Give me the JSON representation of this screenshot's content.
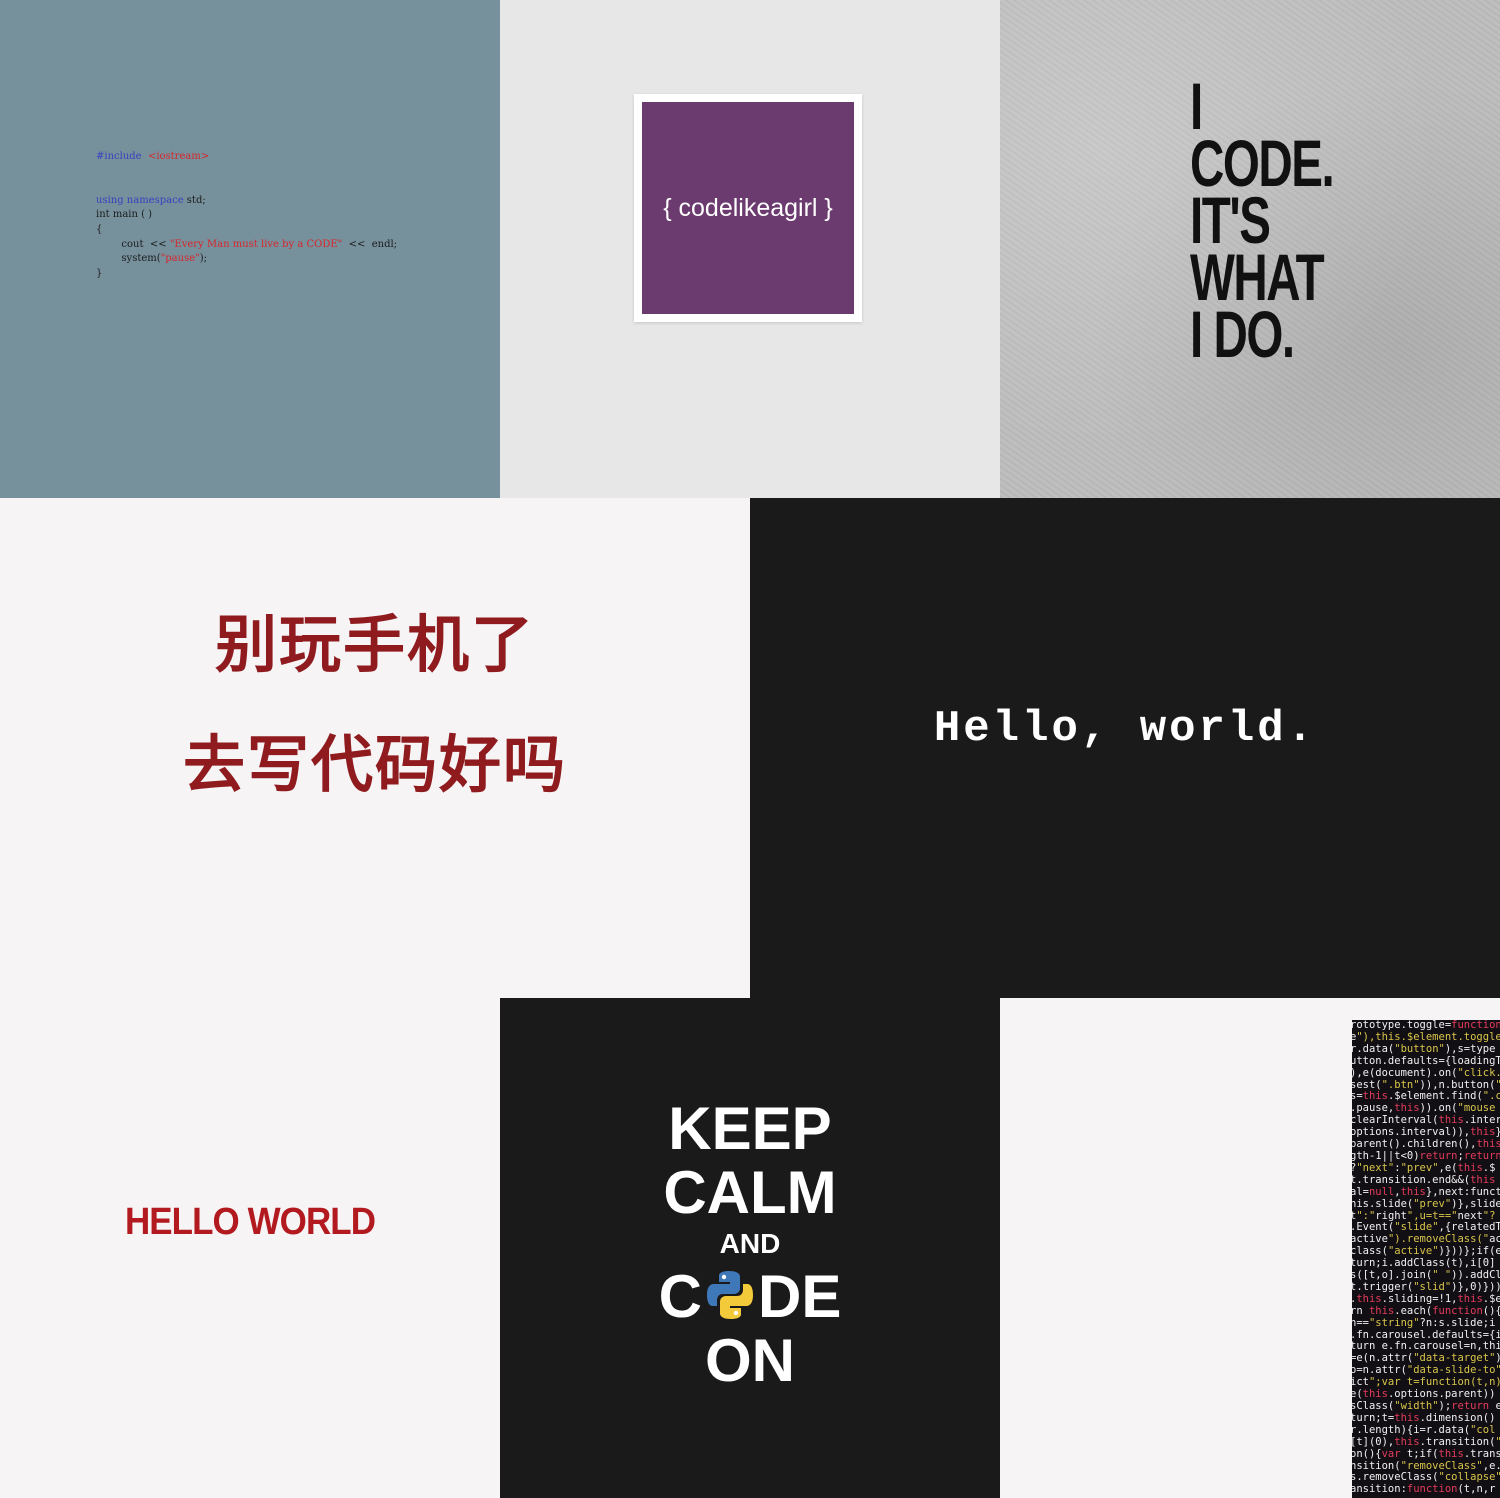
{
  "tile1": {
    "line1_kw": "#include",
    "line1_str": "<iostream>",
    "line2_kw": "using namespace",
    "line2_rest": " std;",
    "line3": "int main ( )",
    "line4": "{",
    "line5_a": "        cout  << ",
    "line5_str": "\"Every Man must live by a CODE\"",
    "line5_b": "  <<  endl;",
    "line6_a": "        system(",
    "line6_str": "\"pause\"",
    "line6_b": ");",
    "line7": "}"
  },
  "tile2": {
    "text": "{ codelikeagirl }"
  },
  "tile3": {
    "lines": [
      "I",
      "CODE.",
      "IT'S",
      "WHAT",
      "I DO."
    ]
  },
  "tile4": {
    "line1": "别玩手机了",
    "line2": "去写代码好吗"
  },
  "tile5": {
    "text": "Hello, world."
  },
  "tile6": {
    "text": "HELLO WORLD"
  },
  "tile7": {
    "line1": "KEEP",
    "line2": "CALM",
    "line3": "AND",
    "line4_a": "C",
    "line4_b": "DE",
    "line5": "ON",
    "python_logo": "python-logo-icon"
  },
  "tile8": {
    "code_lines": [
      "rototype.toggle=function",
      "e\"),this.$element.toggle",
      "r.data(\"button\"),s=type",
      "utton.defaults={loadingT",
      "),e(document).on(\"click.",
      "sest(\".btn\")),n.button(\"",
      "s=this.$element.find(\".c",
      ".pause,this)).on(\"mouse",
      "clearInterval(this.inter",
      "options.interval)),this}",
      "parent().children(),this",
      "gth-1||t<0)return;return",
      "?\"next\":\"prev\",e(this.$",
      "t.transition.end&&(this",
      "al=null,this},next:funct",
      "his.slide(\"prev\")},slide",
      "t\":\"right\",u=t==\"next\"?",
      ".Event(\"slide\",{relatedT",
      "active\").removeClass(\"ac",
      "class(\"active\")}))};if(e.",
      "turn;i.addClass(t),i[0]",
      "s([t,o].join(\" \")).addCl",
      "t.trigger(\"slid\")},0)}))",
      ".this.sliding=!1,this.$e",
      "rn this.each(function(){",
      "n==\"string\"?n:s.slide;i",
      ".fn.carousel.defaults={i",
      "turn e.fn.carousel=n,thi",
      "=e(n.attr(\"data-target\")",
      "o=n.attr(\"data-slide-to\"",
      "ict\";var t=function(t,n)",
      "e(this.options.parent))",
      "sClass(\"width\");return e",
      "turn;t=this.dimension()",
      "r.length){i=r.data(\"col",
      "[t](0),this.transition(\"",
      "on(){var t;if(this.trans",
      "nsition(\"removeClass\",e.",
      "s.removeClass(\"collapse\"",
      "ansition:function(t,n,r"
    ]
  }
}
